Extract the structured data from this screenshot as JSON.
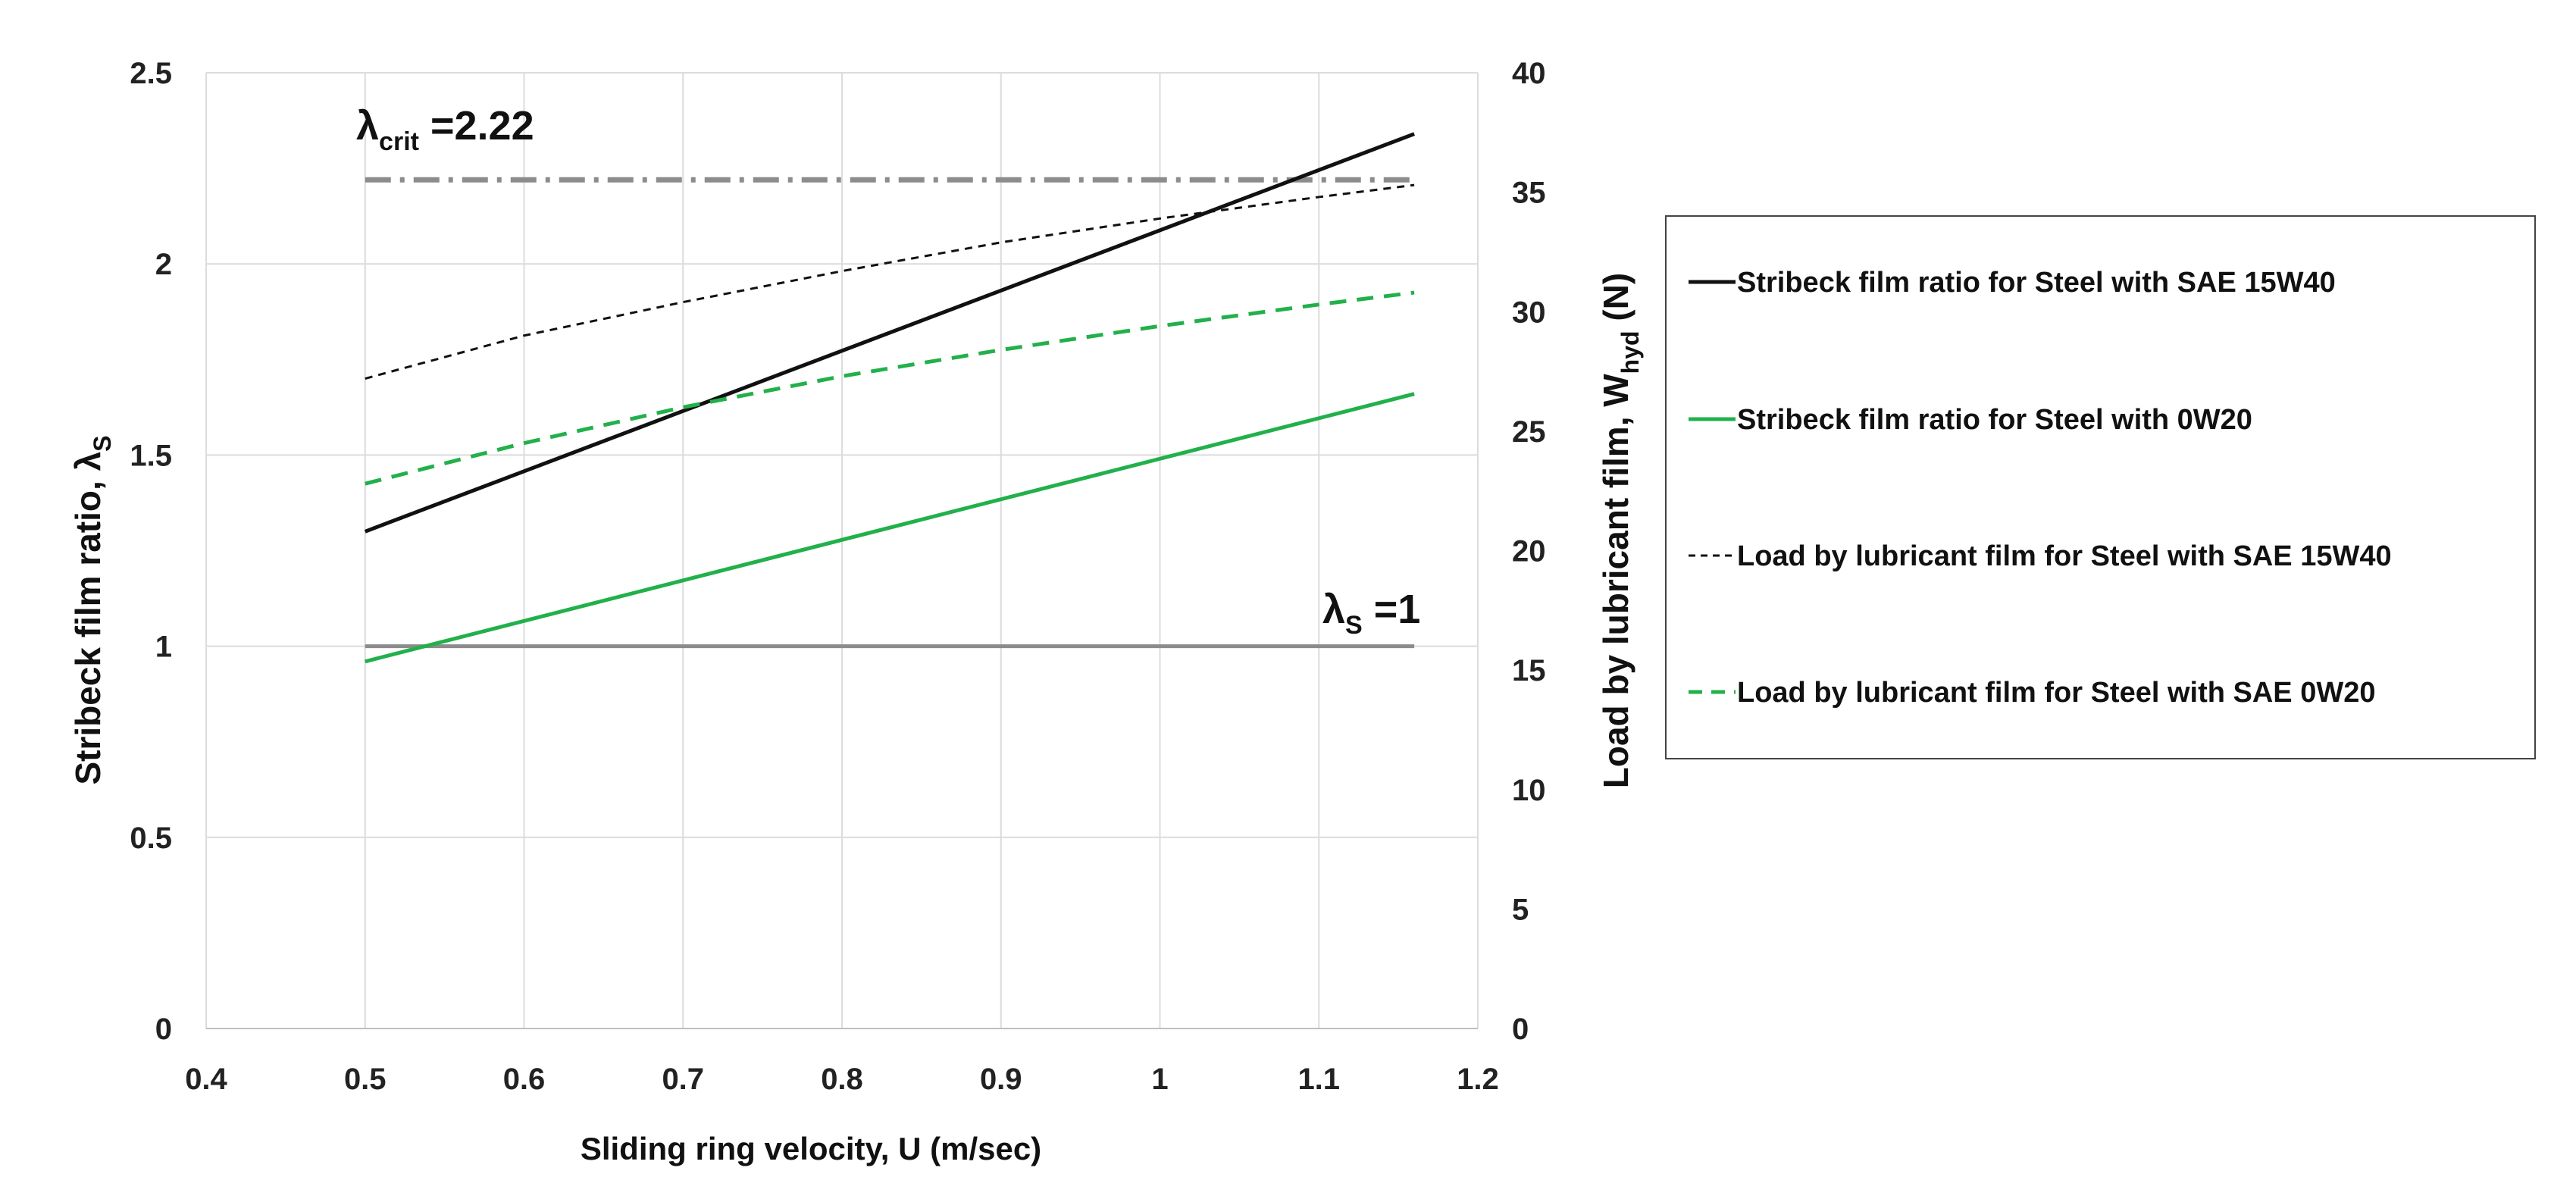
{
  "chart_data": {
    "type": "line",
    "xlabel": "Sliding ring velocity, U (m/sec)",
    "ylabel": {
      "main": "Stribeck film ratio, λ",
      "sub": "S"
    },
    "y2label": {
      "main": "Load by lubricant film, W",
      "sub": "hyd",
      "suffix": " (N)"
    },
    "xlim": [
      0.4,
      1.2
    ],
    "ylim": [
      0,
      2.5
    ],
    "y2lim": [
      0,
      40
    ],
    "xticks": [
      "0.4",
      "0.5",
      "0.6",
      "0.7",
      "0.8",
      "0.9",
      "1",
      "1.1",
      "1.2"
    ],
    "yticks": [
      "0",
      "0.5",
      "1",
      "1.5",
      "2",
      "2.5"
    ],
    "y2ticks": [
      "0",
      "5",
      "10",
      "15",
      "20",
      "25",
      "30",
      "35",
      "40"
    ],
    "grid": true,
    "series": [
      {
        "name": "Stribeck film ratio for Steel with SAE 15W40",
        "axis": "left",
        "color": "#111111",
        "style": "solid",
        "x": [
          0.5,
          1.16
        ],
        "y": [
          1.3,
          2.34
        ]
      },
      {
        "name": "Stribeck film ratio for Steel with 0W20",
        "axis": "left",
        "color": "#22b04b",
        "style": "solid",
        "x": [
          0.5,
          1.16
        ],
        "y": [
          0.96,
          1.66
        ]
      },
      {
        "name": "Load by lubricant film for Steel with SAE 15W40",
        "axis": "right",
        "color": "#111111",
        "style": "short-dash",
        "x": [
          0.5,
          0.6,
          0.7,
          0.8,
          0.9,
          1.0,
          1.1,
          1.16
        ],
        "y": [
          27.2,
          29.0,
          30.4,
          31.7,
          32.9,
          33.9,
          34.8,
          35.3
        ]
      },
      {
        "name": "Load by lubricant film for Steel with SAE 0W20",
        "axis": "right",
        "color": "#22b04b",
        "style": "dash",
        "x": [
          0.5,
          0.6,
          0.7,
          0.8,
          0.9,
          1.0,
          1.1,
          1.16
        ],
        "y": [
          22.8,
          24.5,
          26.0,
          27.3,
          28.4,
          29.4,
          30.3,
          30.8
        ]
      }
    ],
    "reference_lines": [
      {
        "name": "λcrit line",
        "axis": "left",
        "y": 2.22,
        "x": [
          0.5,
          1.16
        ],
        "color": "#8c8c8c",
        "style": "dash-dot"
      },
      {
        "name": "λS=1 line",
        "axis": "left",
        "y": 1.0,
        "x": [
          0.5,
          1.16
        ],
        "color": "#8c8c8c",
        "style": "solid"
      }
    ],
    "annotations": [
      {
        "id": "crit",
        "main": "λ",
        "sub": "crit",
        "rest": " =2.22"
      },
      {
        "id": "one",
        "main": "λ",
        "sub": "S",
        "rest": " =1"
      }
    ],
    "legend": {
      "position": "right",
      "entries": [
        "Stribeck film ratio for Steel with SAE 15W40",
        "Stribeck film ratio for Steel with 0W20",
        "Load by lubricant film for Steel with SAE 15W40",
        "Load by lubricant film for Steel with SAE 0W20"
      ]
    }
  }
}
